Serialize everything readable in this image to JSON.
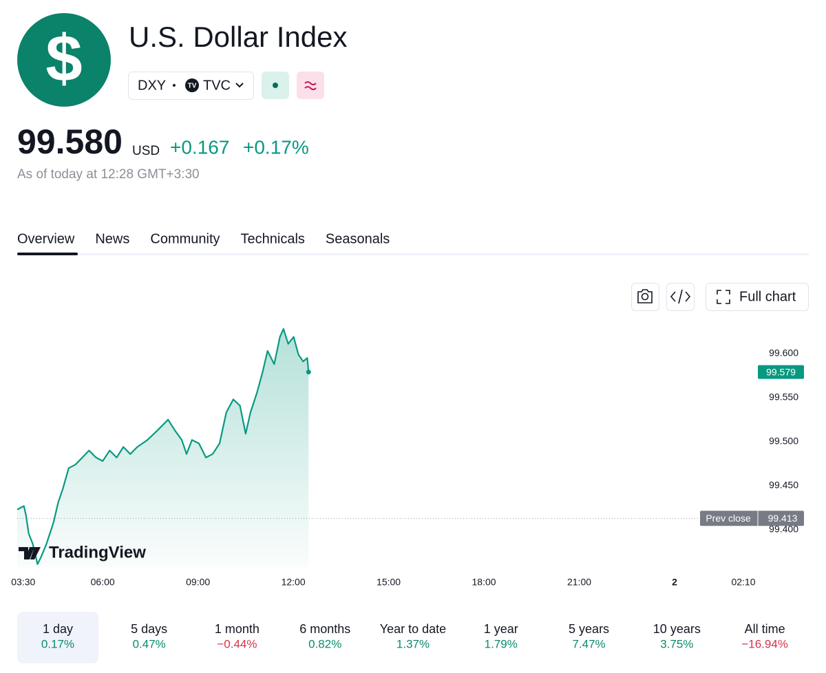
{
  "header": {
    "logo": "$",
    "title": "U.S. Dollar Index",
    "symbol": "DXY",
    "exchange": "TVC"
  },
  "quote": {
    "price": "99.580",
    "currency": "USD",
    "change": "+0.167",
    "change_percent": "+0.17%",
    "as_of": "As of today at 12:28 GMT+3:30"
  },
  "tabs": [
    "Overview",
    "News",
    "Community",
    "Technicals",
    "Seasonals"
  ],
  "toolbar": {
    "full_chart": "Full chart"
  },
  "chart_data": {
    "type": "line",
    "color": "#089981",
    "x": [
      3.31,
      3.52,
      3.59,
      3.67,
      3.8,
      3.95,
      4.06,
      4.23,
      4.45,
      4.6,
      4.75,
      4.93,
      5.14,
      5.36,
      5.57,
      5.79,
      6.0,
      6.22,
      6.44,
      6.65,
      6.87,
      7.09,
      7.41,
      7.73,
      8.06,
      8.27,
      8.49,
      8.64,
      8.81,
      9.03,
      9.25,
      9.46,
      9.68,
      9.89,
      10.11,
      10.32,
      10.5,
      10.65,
      10.86,
      11.04,
      11.19,
      11.4,
      11.58,
      11.69,
      11.84,
      12.01,
      12.16,
      12.31,
      12.44,
      12.48
    ],
    "values": [
      99.423,
      99.427,
      99.416,
      99.396,
      99.384,
      99.361,
      99.369,
      99.384,
      99.408,
      99.431,
      99.447,
      99.47,
      99.474,
      99.482,
      99.49,
      99.482,
      99.478,
      99.49,
      99.482,
      99.494,
      99.486,
      99.494,
      99.502,
      99.513,
      99.525,
      99.513,
      99.502,
      99.486,
      99.502,
      99.498,
      99.482,
      99.486,
      99.498,
      99.533,
      99.548,
      99.541,
      99.509,
      99.533,
      99.556,
      99.58,
      99.603,
      99.588,
      99.619,
      99.628,
      99.611,
      99.619,
      99.599,
      99.591,
      99.595,
      99.579
    ],
    "xlim": [
      3.31,
      26.6
    ],
    "ylim": [
      99.357,
      99.642
    ],
    "xticks": [
      {
        "value": 3.5,
        "label": "03:30"
      },
      {
        "value": 6,
        "label": "06:00"
      },
      {
        "value": 9,
        "label": "09:00"
      },
      {
        "value": 12,
        "label": "12:00"
      },
      {
        "value": 15,
        "label": "15:00"
      },
      {
        "value": 18,
        "label": "18:00"
      },
      {
        "value": 21,
        "label": "21:00"
      },
      {
        "value": 24,
        "label": "2"
      },
      {
        "value": 26.1667,
        "label": "02:10"
      }
    ],
    "yticks": [
      {
        "value": 99.4,
        "label": "99.400"
      },
      {
        "value": 99.45,
        "label": "99.450"
      },
      {
        "value": 99.5,
        "label": "99.500"
      },
      {
        "value": 99.55,
        "label": "99.550"
      },
      {
        "value": 99.6,
        "label": "99.600"
      }
    ],
    "prev_close": 99.413,
    "prev_close_label": "Prev close",
    "watermark": "TradingView"
  },
  "ranges": [
    {
      "label": "1 day",
      "change": "0.17%"
    },
    {
      "label": "5 days",
      "change": "0.47%"
    },
    {
      "label": "1 month",
      "change": "−0.44%"
    },
    {
      "label": "6 months",
      "change": "0.82%"
    },
    {
      "label": "Year to date",
      "change": "1.37%"
    },
    {
      "label": "1 year",
      "change": "1.79%"
    },
    {
      "label": "5 years",
      "change": "7.47%"
    },
    {
      "label": "10 years",
      "change": "3.75%"
    },
    {
      "label": "All time",
      "change": "−16.94%"
    }
  ]
}
